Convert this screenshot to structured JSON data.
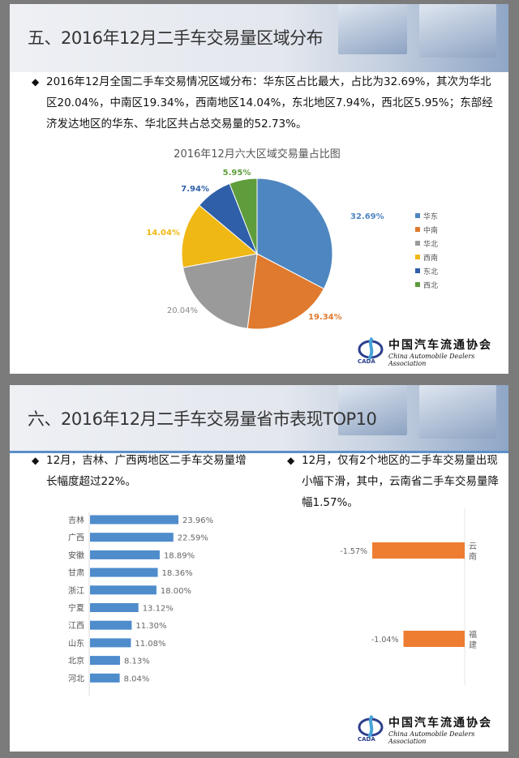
{
  "slide1": {
    "title": "五、2016年12月二手车交易量区域分布",
    "bullet": "2016年12月全国二手车交易情况区域分布：华东区占比最大，占比为32.69%，其次为华北区20.04%，中南区19.34%，西南地区14.04%，东北地区7.94%，西北区5.95%；东部经济发达地区的华东、华北区共占总交易量的52.73%。",
    "logo": {
      "cn": "中国汽车流通协会",
      "en": "China Automobile Dealers Association",
      "abbr": "CADA"
    }
  },
  "slide2": {
    "title": "六、2016年12月二手车交易量省市表现TOP10",
    "bullet_left": "12月，吉林、广西两地区二手车交易量增长幅度超过22%。",
    "bullet_right": "12月，仅有2个地区的二手车交易量出现小幅下滑，其中，云南省二手车交易量降幅1.57%。",
    "logo": {
      "cn": "中国汽车流通协会",
      "en": "China Automobile Dealers Association",
      "abbr": "CADA"
    }
  },
  "chart_data": [
    {
      "type": "pie",
      "title": "2016年12月六大区域交易量占比图",
      "legend_position": "right",
      "categories": [
        "华东",
        "中南",
        "华北",
        "西南",
        "东北",
        "西北"
      ],
      "values": [
        32.69,
        19.34,
        20.04,
        14.04,
        7.94,
        5.95
      ],
      "labels": [
        "32.69%",
        "19.34%",
        "20.04%",
        "14.04%",
        "7.94%",
        "5.95%"
      ],
      "colors": [
        "#4e86c1",
        "#e07a2e",
        "#9a9a9a",
        "#f0b814",
        "#2e5fa8",
        "#5e9c3c"
      ]
    },
    {
      "type": "bar",
      "orientation": "horizontal",
      "categories": [
        "吉林",
        "广西",
        "安徽",
        "甘肃",
        "浙江",
        "宁夏",
        "江西",
        "山东",
        "北京",
        "河北"
      ],
      "values": [
        23.96,
        22.59,
        18.89,
        18.36,
        18.0,
        13.12,
        11.3,
        11.08,
        8.13,
        8.04
      ],
      "labels": [
        "23.96%",
        "22.59%",
        "18.89%",
        "18.36%",
        "18.00%",
        "13.12%",
        "11.30%",
        "11.08%",
        "8.13%",
        "8.04%"
      ],
      "color": "#4e8ccc"
    },
    {
      "type": "bar",
      "orientation": "horizontal",
      "categories": [
        "云南",
        "福建"
      ],
      "values": [
        -1.57,
        -1.04
      ],
      "labels": [
        "-1.57%",
        "-1.04%"
      ],
      "color": "#ee7d31"
    }
  ]
}
